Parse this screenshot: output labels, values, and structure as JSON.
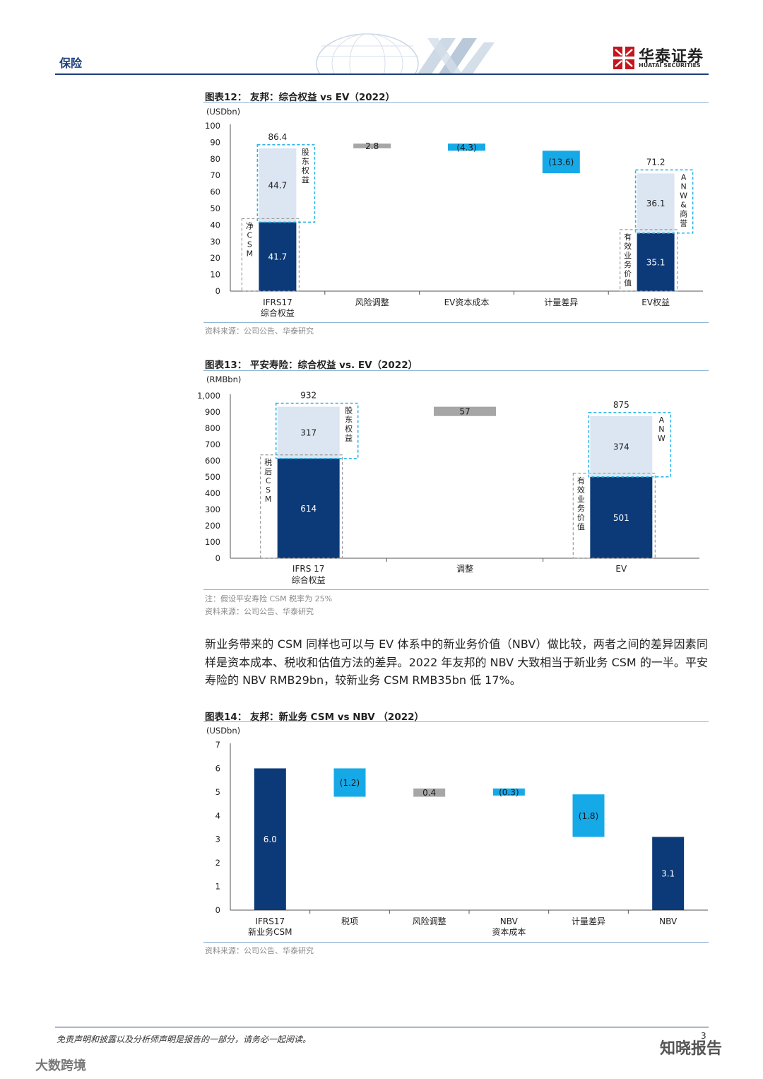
{
  "header": {
    "section": "保险",
    "logo_cn": "华泰证券",
    "logo_en": "HUATAI SECURITIES"
  },
  "charts": [
    {
      "title": "图表12：  友邦：综合权益  vs EV（2022）",
      "source": "资料来源：公司公告、华泰研究"
    },
    {
      "title": "图表13：  平安寿险：综合权益  vs. EV（2022）",
      "note": "注：假设平安寿险 CSM 税率为 25%",
      "source": "资料来源：公司公告、华泰研究"
    },
    {
      "title": "图表14：  友邦：新业务 CSM vs NBV  （2022）",
      "source": "资料来源：公司公告、华泰研究"
    }
  ],
  "body_text": "新业务带来的 CSM 同样也可以与 EV 体系中的新业务价值（NBV）做比较，两者之间的差异因素同样是资本成本、税收和估值方法的差异。2022 年友邦的 NBV 大致相当于新业务 CSM 的一半。平安寿险的 NBV RMB29bn，较新业务 CSM RMB35bn 低 17%。",
  "footer": {
    "disclaimer": "免责声明和披露以及分析师声明是报告的一部分，请务必一起阅读。",
    "page": "3",
    "watermark_right": "知晓报告",
    "watermark_left": "大数跨境"
  },
  "colors": {
    "dark_navy": "#0c3a78",
    "light_fill": "#dce6f2",
    "cyan": "#16a9e8",
    "gray": "#a6a6a6",
    "dash_cyan": "#2bb6ea",
    "dash_gray": "#9a9a9a"
  },
  "chart_data": [
    {
      "type": "bar",
      "subtype": "waterfall",
      "unit": "(USDbn)",
      "ylim": [
        0,
        100
      ],
      "yticks": [
        0,
        10,
        20,
        30,
        40,
        50,
        60,
        70,
        80,
        90,
        100
      ],
      "categories": [
        [
          "IFRS17",
          "综合权益"
        ],
        [
          "风险调整"
        ],
        [
          "EV资本成本"
        ],
        [
          "计量差异"
        ],
        [
          "EV权益"
        ]
      ],
      "bars": [
        {
          "cat": 0,
          "bottom": 0,
          "top": 41.7,
          "label": "41.7",
          "style": "dark"
        },
        {
          "cat": 0,
          "bottom": 41.7,
          "top": 86.4,
          "label": "44.7",
          "style": "light"
        },
        {
          "cat": 1,
          "bottom": 86.4,
          "top": 89.2,
          "label": "2.8",
          "style": "gray"
        },
        {
          "cat": 2,
          "bottom": 84.9,
          "top": 89.2,
          "label": "(4.3)",
          "style": "cyan"
        },
        {
          "cat": 3,
          "bottom": 71.3,
          "top": 84.9,
          "label": "(13.6)",
          "style": "cyan"
        },
        {
          "cat": 4,
          "bottom": 0,
          "top": 35.1,
          "label": "35.1",
          "style": "dark"
        },
        {
          "cat": 4,
          "bottom": 35.1,
          "top": 71.2,
          "label": "36.1",
          "style": "light"
        }
      ],
      "totals": [
        {
          "cat": 0,
          "value": 86.4,
          "label": "86.4"
        },
        {
          "cat": 4,
          "value": 71.2,
          "label": "71.2"
        }
      ],
      "annotations": [
        {
          "text": "净CSM",
          "cat": 0,
          "side": "left",
          "bottom": 0,
          "top": 41.7,
          "color": "gray"
        },
        {
          "text": "股东权益",
          "cat": 0,
          "side": "right",
          "bottom": 41.7,
          "top": 86.4,
          "color": "cyan"
        },
        {
          "text": "有效业务价值",
          "cat": 4,
          "side": "left",
          "bottom": 0,
          "top": 35.1,
          "color": "gray"
        },
        {
          "text": "ANW&商誉",
          "cat": 4,
          "side": "right",
          "bottom": 35.1,
          "top": 71.2,
          "color": "cyan"
        }
      ]
    },
    {
      "type": "bar",
      "subtype": "waterfall",
      "unit": "(RMBbn)",
      "ylim": [
        0,
        1000
      ],
      "yticks": [
        0,
        100,
        200,
        300,
        400,
        500,
        600,
        700,
        800,
        900,
        1000
      ],
      "ytick_labels": [
        "0",
        "100",
        "200",
        "300",
        "400",
        "500",
        "600",
        "700",
        "800",
        "900",
        "1,000"
      ],
      "categories": [
        [
          "IFRS 17",
          "综合权益"
        ],
        [
          "调整"
        ],
        [
          "EV"
        ]
      ],
      "bars": [
        {
          "cat": 0,
          "bottom": 0,
          "top": 614,
          "label": "614",
          "style": "dark"
        },
        {
          "cat": 0,
          "bottom": 614,
          "top": 932,
          "label": "317",
          "style": "light"
        },
        {
          "cat": 1,
          "bottom": 875,
          "top": 932,
          "label": "57",
          "style": "gray"
        },
        {
          "cat": 2,
          "bottom": 0,
          "top": 501,
          "label": "501",
          "style": "dark"
        },
        {
          "cat": 2,
          "bottom": 501,
          "top": 875,
          "label": "374",
          "style": "light"
        }
      ],
      "totals": [
        {
          "cat": 0,
          "value": 932,
          "label": "932"
        },
        {
          "cat": 2,
          "value": 875,
          "label": "875"
        }
      ],
      "annotations": [
        {
          "text": "税后CSM",
          "cat": 0,
          "side": "left",
          "bottom": 0,
          "top": 614,
          "color": "gray"
        },
        {
          "text": "股东权益",
          "cat": 0,
          "side": "right",
          "bottom": 614,
          "top": 932,
          "color": "cyan"
        },
        {
          "text": "有效业务价值",
          "cat": 2,
          "side": "left",
          "bottom": 0,
          "top": 501,
          "color": "gray"
        },
        {
          "text": "ANW",
          "cat": 2,
          "side": "right",
          "bottom": 501,
          "top": 875,
          "color": "cyan"
        }
      ]
    },
    {
      "type": "bar",
      "subtype": "waterfall",
      "unit": "(USDbn)",
      "ylim": [
        0,
        7
      ],
      "yticks": [
        0,
        1,
        2,
        3,
        4,
        5,
        6,
        7
      ],
      "categories": [
        [
          "IFRS17",
          "新业务CSM"
        ],
        [
          "税项"
        ],
        [
          "风险调整"
        ],
        [
          "NBV",
          "资本成本"
        ],
        [
          "计量差异"
        ],
        [
          "NBV"
        ]
      ],
      "bars": [
        {
          "cat": 0,
          "bottom": 0,
          "top": 6.0,
          "label": "6.0",
          "style": "dark"
        },
        {
          "cat": 1,
          "bottom": 4.8,
          "top": 6.0,
          "label": "(1.2)",
          "style": "cyan"
        },
        {
          "cat": 2,
          "bottom": 4.8,
          "top": 5.15,
          "label": "0.4",
          "style": "gray"
        },
        {
          "cat": 3,
          "bottom": 4.85,
          "top": 5.15,
          "label": "(0.3)",
          "style": "cyan"
        },
        {
          "cat": 4,
          "bottom": 3.1,
          "top": 4.9,
          "label": "(1.8)",
          "style": "cyan"
        },
        {
          "cat": 5,
          "bottom": 0,
          "top": 3.1,
          "label": "3.1",
          "style": "dark"
        }
      ]
    }
  ]
}
